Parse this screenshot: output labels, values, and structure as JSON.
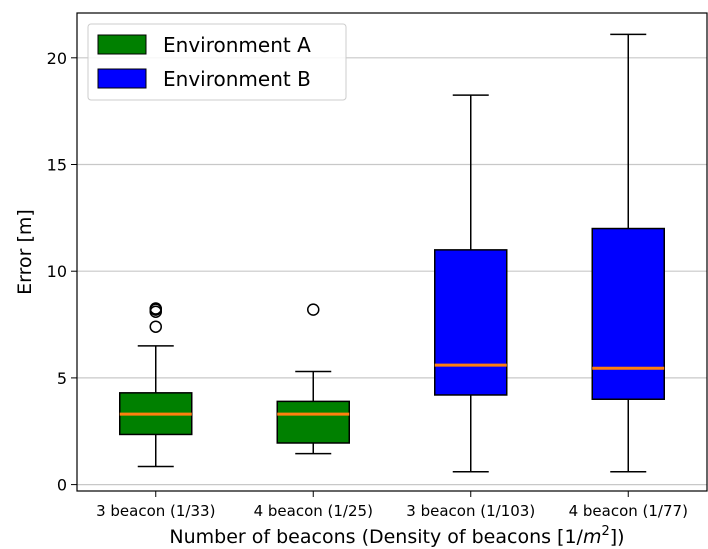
{
  "chart_data": {
    "type": "boxplot",
    "xlabel_main": "Number of beacons (Density of beacons [1/",
    "xlabel_m": "m",
    "xlabel_sup": "2",
    "xlabel_end": "])",
    "ylabel": "Error [m]",
    "ylim": [
      -0.3,
      22.1
    ],
    "yticks": [
      0,
      5,
      10,
      15,
      20
    ],
    "grid": "horizontal",
    "legend_position": "top-left",
    "colors": {
      "Environment A": "#008000",
      "Environment B": "#0000ff",
      "median": "#ff7f0e"
    },
    "legend": [
      "Environment A",
      "Environment B"
    ],
    "categories": [
      "3 beacon (1/33)",
      "4 beacon (1/25)",
      "3 beacon (1/103)",
      "4 beacon (1/77)"
    ],
    "boxes": [
      {
        "group": "Environment A",
        "whisker_low": 0.85,
        "q1": 2.35,
        "median": 3.3,
        "q3": 4.3,
        "whisker_high": 6.5,
        "outliers": [
          7.4,
          8.1,
          8.2,
          8.25
        ]
      },
      {
        "group": "Environment A",
        "whisker_low": 1.45,
        "q1": 1.95,
        "median": 3.3,
        "q3": 3.9,
        "whisker_high": 5.3,
        "outliers": [
          8.2
        ]
      },
      {
        "group": "Environment B",
        "whisker_low": 0.6,
        "q1": 4.2,
        "median": 5.6,
        "q3": 11.0,
        "whisker_high": 18.25,
        "outliers": []
      },
      {
        "group": "Environment B",
        "whisker_low": 0.6,
        "q1": 4.0,
        "median": 5.45,
        "q3": 12.0,
        "whisker_high": 21.1,
        "outliers": []
      }
    ]
  }
}
